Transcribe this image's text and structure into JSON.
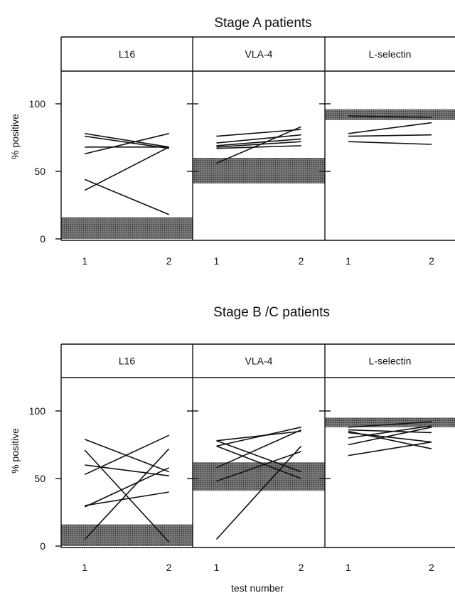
{
  "figure": {
    "xlabel": "test number",
    "ylabel": "% positive",
    "x_ticks": [
      "1",
      "2"
    ],
    "y_ticks": [
      "0",
      "50",
      "100"
    ],
    "ylim": [
      0,
      125
    ],
    "colors": {
      "band": "#555555",
      "line": "#111111",
      "frame": "#111111"
    }
  },
  "chart_data": [
    {
      "type": "line",
      "title": "Stage A patients",
      "xlabel": "test number",
      "ylabel": "% positive",
      "x": [
        1,
        2
      ],
      "ylim": [
        0,
        125
      ],
      "panels": [
        {
          "label": "L16",
          "normal_range": [
            0,
            16
          ],
          "series": [
            {
              "values": [
                78,
                68
              ]
            },
            {
              "values": [
                76,
                67
              ]
            },
            {
              "values": [
                68,
                68
              ]
            },
            {
              "values": [
                63,
                78
              ]
            },
            {
              "values": [
                44,
                18
              ]
            },
            {
              "values": [
                36,
                68
              ]
            }
          ]
        },
        {
          "label": "VLA-4",
          "normal_range": [
            41,
            60
          ],
          "series": [
            {
              "values": [
                76,
                81
              ]
            },
            {
              "values": [
                71,
                77
              ]
            },
            {
              "values": [
                69,
                74
              ]
            },
            {
              "values": [
                68,
                72
              ]
            },
            {
              "values": [
                67,
                69
              ]
            },
            {
              "values": [
                56,
                83
              ]
            }
          ]
        },
        {
          "label": "L-selectin",
          "normal_range": [
            88,
            96
          ],
          "series": [
            {
              "values": [
                91,
                90
              ]
            },
            {
              "values": [
                78,
                86
              ]
            },
            {
              "values": [
                76,
                77
              ]
            },
            {
              "values": [
                72,
                70
              ]
            }
          ]
        }
      ]
    },
    {
      "type": "line",
      "title": "Stage B /C  patients",
      "xlabel": "test number",
      "ylabel": "% positive",
      "x": [
        1,
        2
      ],
      "ylim": [
        0,
        125
      ],
      "panels": [
        {
          "label": "L16",
          "normal_range": [
            0,
            16
          ],
          "series": [
            {
              "values": [
                79,
                55
              ]
            },
            {
              "values": [
                71,
                3
              ]
            },
            {
              "values": [
                60,
                52
              ]
            },
            {
              "values": [
                53,
                82
              ]
            },
            {
              "values": [
                29,
                58
              ]
            },
            {
              "values": [
                30,
                40
              ]
            },
            {
              "values": [
                5,
                72
              ]
            }
          ]
        },
        {
          "label": "VLA-4",
          "normal_range": [
            41,
            62
          ],
          "series": [
            {
              "values": [
                78,
                85
              ]
            },
            {
              "values": [
                74,
                88
              ]
            },
            {
              "values": [
                78,
                55
              ]
            },
            {
              "values": [
                74,
                50
              ]
            },
            {
              "values": [
                58,
                86
              ]
            },
            {
              "values": [
                48,
                70
              ]
            },
            {
              "values": [
                5,
                74
              ]
            }
          ]
        },
        {
          "label": "L-selectin",
          "normal_range": [
            88,
            95
          ],
          "series": [
            {
              "values": [
                88,
                92
              ]
            },
            {
              "values": [
                86,
                84
              ]
            },
            {
              "values": [
                84,
                77
              ]
            },
            {
              "values": [
                80,
                89
              ]
            },
            {
              "values": [
                75,
                88
              ]
            },
            {
              "values": [
                67,
                77
              ]
            },
            {
              "values": [
                85,
                72
              ]
            }
          ]
        }
      ]
    }
  ]
}
